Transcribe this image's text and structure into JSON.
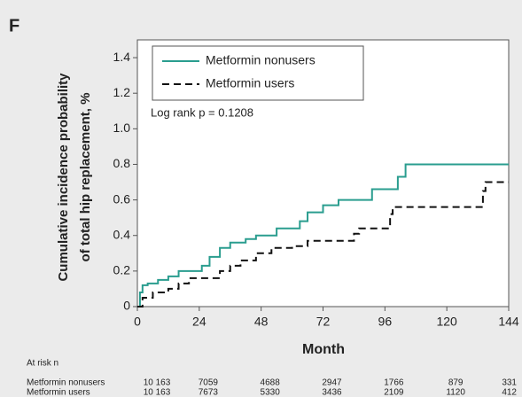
{
  "panel_label": "F",
  "chart_data": {
    "type": "step",
    "ylabel": [
      "Cumulative incidence probability",
      "of total hip replacement, %"
    ],
    "xlabel": "Month",
    "annotation": "Log rank p = 0.1208",
    "xlim": [
      0,
      144
    ],
    "xticks": [
      0,
      24,
      48,
      72,
      96,
      120,
      144
    ],
    "ylim": [
      0,
      1.5
    ],
    "yticks": [
      0,
      0.2,
      0.4,
      0.6,
      0.8,
      {
        "value": 1,
        "label": "1.0"
      },
      1.2,
      1.4
    ],
    "legend": "top-left",
    "series": [
      {
        "name": "Metformin nonusers",
        "color": "#2a9d8f",
        "dash": "solid",
        "x": [
          0,
          1,
          2,
          4,
          8,
          12,
          16,
          25,
          28,
          32,
          36,
          42,
          46,
          54,
          63,
          66,
          72,
          78,
          91,
          101,
          104,
          144
        ],
        "values": [
          0,
          0.08,
          0.12,
          0.13,
          0.15,
          0.17,
          0.2,
          0.23,
          0.28,
          0.33,
          0.36,
          0.38,
          0.4,
          0.44,
          0.48,
          0.53,
          0.57,
          0.6,
          0.66,
          0.73,
          0.8,
          0.8
        ]
      },
      {
        "name": "Metformin users",
        "color": "#111111",
        "dash": "dashed",
        "x": [
          0,
          2,
          6,
          12,
          16,
          20,
          32,
          36,
          40,
          46,
          52,
          60,
          66,
          84,
          86,
          98,
          99,
          134,
          135,
          144
        ],
        "values": [
          0,
          0.05,
          0.08,
          0.1,
          0.13,
          0.16,
          0.2,
          0.23,
          0.26,
          0.3,
          0.33,
          0.34,
          0.37,
          0.41,
          0.44,
          0.52,
          0.56,
          0.65,
          0.7,
          0.7
        ]
      }
    ]
  },
  "risk_table": {
    "title": "At risk n",
    "rows": [
      {
        "name": "Metformin nonusers",
        "values": [
          "10 163",
          "7059",
          "4688",
          "2947",
          "1766",
          "879",
          "331"
        ]
      },
      {
        "name": "Metformin users",
        "values": [
          "10 163",
          "7673",
          "5330",
          "3436",
          "2109",
          "1120",
          "412"
        ]
      }
    ]
  }
}
